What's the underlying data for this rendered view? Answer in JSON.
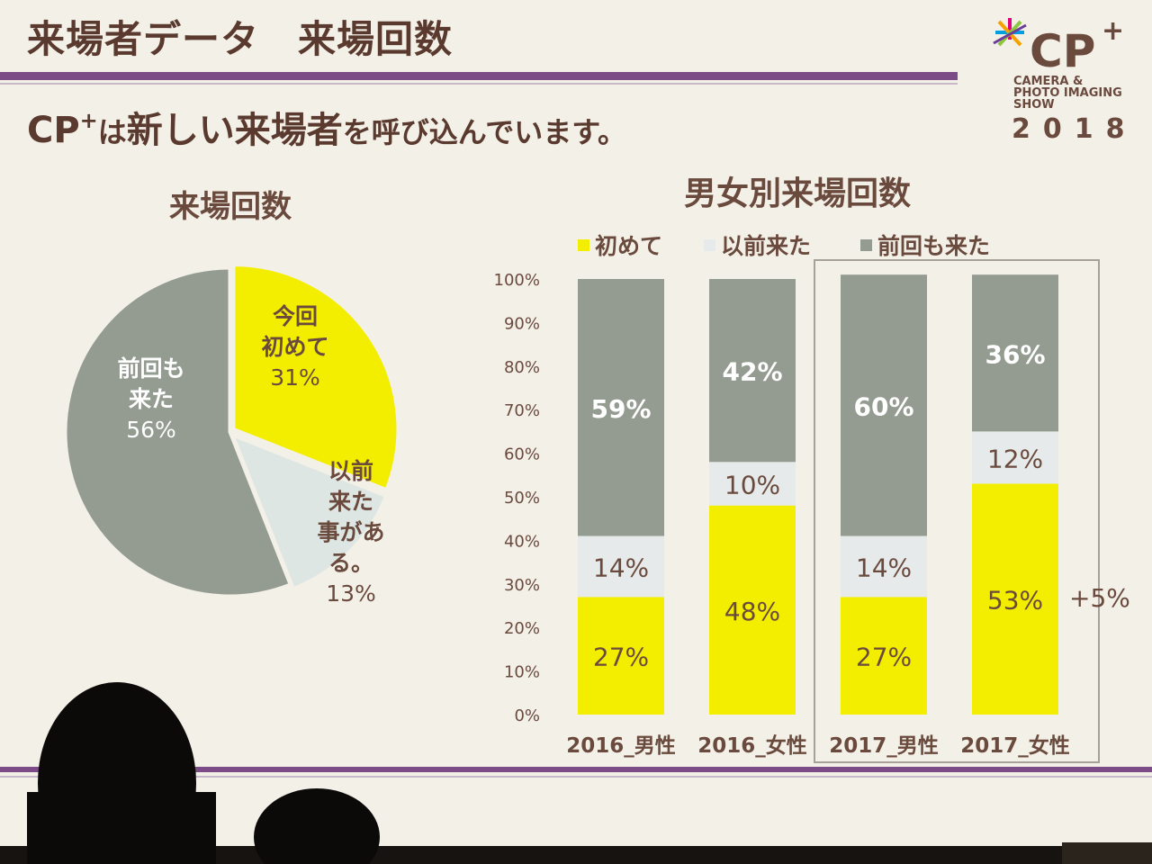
{
  "slide": {
    "title": "来場者データ　来場回数",
    "subtitle_pre": "CP",
    "subtitle_sup": "+",
    "subtitle_small1": "は",
    "subtitle_big": "新しい来場者",
    "subtitle_small2": "を呼び込んでいます。"
  },
  "logo": {
    "name": "CP",
    "plus": "+",
    "line1": "CAMERA &",
    "line2": "PHOTO IMAGING",
    "line3": "SHOW",
    "year": "2018"
  },
  "chart_data": [
    {
      "type": "pie",
      "title": "来場回数",
      "slices": [
        {
          "label_lines": [
            "今回",
            "初めて"
          ],
          "value": 31,
          "value_label": "31%",
          "color": "#f3ee00"
        },
        {
          "label_lines": [
            "以前",
            "来た",
            "事があ",
            "る。"
          ],
          "value": 13,
          "value_label": "13%",
          "color": "#dde6e2"
        },
        {
          "label_lines": [
            "前回も",
            "来た"
          ],
          "value": 56,
          "value_label": "56%",
          "color": "#949c92"
        }
      ]
    },
    {
      "type": "bar",
      "stacked": true,
      "title": "男女別来場回数",
      "categories": [
        "2016_男性",
        "2016_女性",
        "2017_男性",
        "2017_女性"
      ],
      "ylim": [
        0,
        100
      ],
      "yticks": [
        "0%",
        "10%",
        "20%",
        "30%",
        "40%",
        "50%",
        "60%",
        "70%",
        "80%",
        "90%",
        "100%"
      ],
      "legend_position": "top",
      "series": [
        {
          "name": "初めて",
          "values": [
            27,
            48,
            27,
            53
          ],
          "labels": [
            "27%",
            "48%",
            "27%",
            "53%"
          ],
          "color": "#f3ee00",
          "label_color": "#6b4a3e"
        },
        {
          "name": "以前来た",
          "values": [
            14,
            10,
            14,
            12
          ],
          "labels": [
            "14%",
            "10%",
            "14%",
            "12%"
          ],
          "color": "#e6eaea",
          "label_color": "#6b4a3e"
        },
        {
          "name": "前回も来た",
          "values": [
            59,
            42,
            60,
            36
          ],
          "labels": [
            "59%",
            "42%",
            "60%",
            "36%"
          ],
          "color": "#949c92",
          "label_color": "#ffffff"
        }
      ],
      "highlight": {
        "categories": [
          "2017_男性",
          "2017_女性"
        ],
        "annotation": "+5%"
      }
    }
  ]
}
